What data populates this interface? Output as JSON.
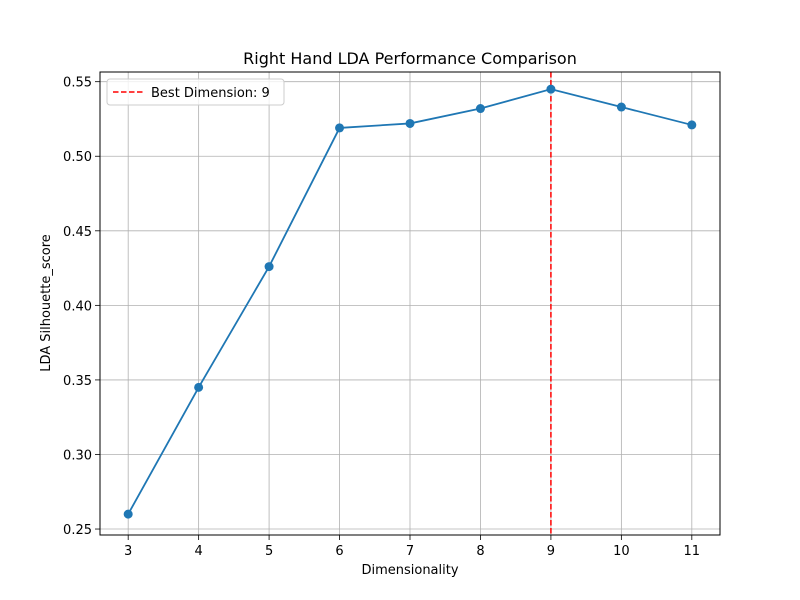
{
  "chart_data": {
    "type": "line",
    "title": "Right Hand LDA Performance Comparison",
    "xlabel": "Dimensionality",
    "ylabel": "LDA Silhouette_score",
    "x": [
      3,
      4,
      5,
      6,
      7,
      8,
      9,
      10,
      11
    ],
    "xlim": [
      2.6,
      11.4
    ],
    "ylim": [
      0.246,
      0.5565
    ],
    "yticks": [
      0.25,
      0.3,
      0.35,
      0.4,
      0.45,
      0.5,
      0.55
    ],
    "ytick_labels": [
      "0.25",
      "0.30",
      "0.35",
      "0.40",
      "0.45",
      "0.50",
      "0.55"
    ],
    "xtick_labels": [
      "3",
      "4",
      "5",
      "6",
      "7",
      "8",
      "9",
      "10",
      "11"
    ],
    "grid": true,
    "legend_position": "upper-left",
    "series": [
      {
        "values": [
          0.26,
          0.345,
          0.426,
          0.519,
          0.522,
          0.532,
          0.545,
          0.533,
          0.521
        ],
        "color": "#1f77b4",
        "marker": "circle"
      }
    ],
    "reference_line": {
      "orientation": "vertical",
      "x": 9,
      "label": "Best Dimension: 9",
      "color": "#ff0000",
      "style": "dashed"
    }
  }
}
